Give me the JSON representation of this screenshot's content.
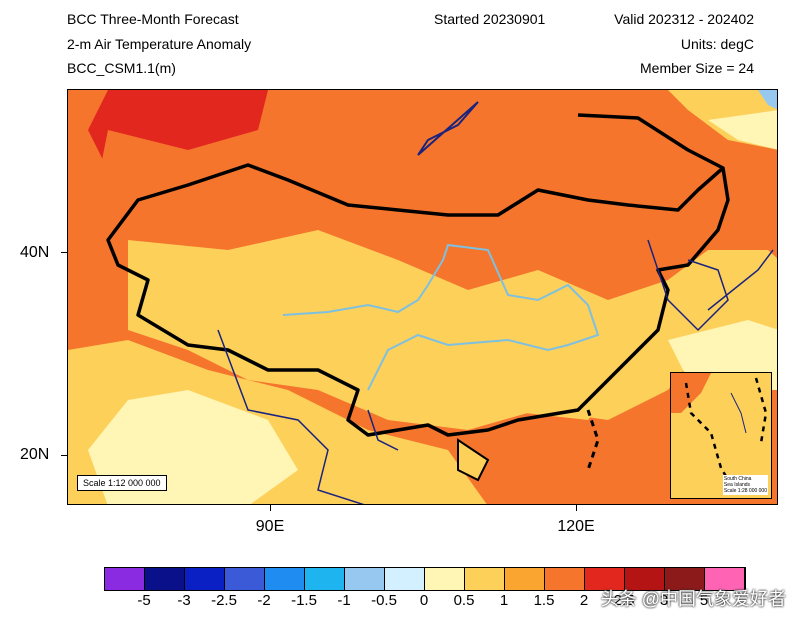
{
  "header": {
    "title": "BCC Three-Month Forecast",
    "variable": "2-m Air Temperature Anomaly",
    "model": "BCC_CSM1.1(m)",
    "started": "Started 20230901",
    "valid": "Valid 202312 - 202402",
    "units": "Units: degC",
    "members": "Member Size = 24"
  },
  "axes": {
    "y_ticks": [
      "40N",
      "20N"
    ],
    "x_ticks": [
      "90E",
      "120E"
    ]
  },
  "map": {
    "scale": "Scale 1:12 000 000",
    "inset_label": [
      "South China",
      "Sea Islands",
      "Scale 1:28 000 000"
    ]
  },
  "colorbar": {
    "colors": [
      "#8a2be2",
      "#0a0f8a",
      "#0a1fc4",
      "#3a5ad8",
      "#1e8cf0",
      "#1eb4f0",
      "#96c8f0",
      "#d2f0ff",
      "#fff5b4",
      "#fdd05a",
      "#fba531",
      "#f5752d",
      "#e1271e",
      "#b41414",
      "#8c1a1a",
      "#ff64b4"
    ],
    "labels": [
      "-5",
      "-3",
      "-2.5",
      "-2",
      "-1.5",
      "-1",
      "-0.5",
      "0",
      "0.5",
      "1",
      "1.5",
      "2",
      "2.5",
      "3",
      "5"
    ]
  },
  "watermark": "头条 @中国气象爱好者"
}
